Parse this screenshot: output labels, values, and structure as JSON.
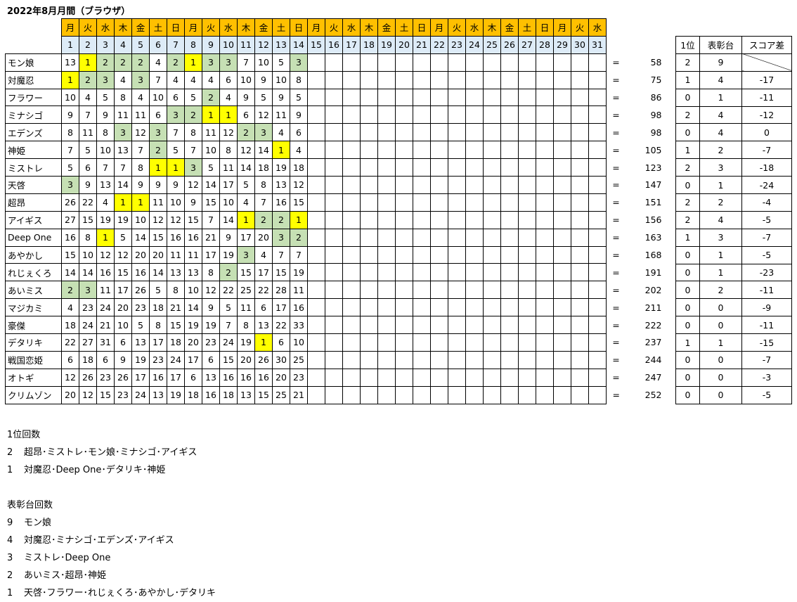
{
  "title": "2022年8月月間（ブラウザ）",
  "weekdays": [
    "月",
    "火",
    "水",
    "木",
    "金",
    "土",
    "日",
    "月",
    "火",
    "水",
    "木",
    "金",
    "土",
    "日",
    "月",
    "火",
    "水",
    "木",
    "金",
    "土",
    "日",
    "月",
    "火",
    "水",
    "木",
    "金",
    "土",
    "日",
    "月",
    "火",
    "水"
  ],
  "dates": [
    "1",
    "2",
    "3",
    "4",
    "5",
    "6",
    "7",
    "8",
    "9",
    "10",
    "11",
    "12",
    "13",
    "14",
    "15",
    "16",
    "17",
    "18",
    "19",
    "20",
    "21",
    "22",
    "23",
    "24",
    "25",
    "26",
    "27",
    "28",
    "29",
    "30",
    "31"
  ],
  "equals_sign": "=",
  "colors": {
    "header": "#FFC000",
    "date_row": "#DDEBF7",
    "first_place": "#FFFF00",
    "podium": "#C6E0B4"
  },
  "stats_headers": [
    "1位",
    "表彰台",
    "スコア差"
  ],
  "rows": [
    {
      "name": "モン娘",
      "ranks": [
        "13",
        "1",
        "2",
        "2",
        "2",
        "4",
        "2",
        "1",
        "3",
        "3",
        "7",
        "10",
        "5",
        "3"
      ],
      "total": "58",
      "first": "2",
      "podium": "9",
      "diff": ""
    },
    {
      "name": "対魔忍",
      "ranks": [
        "1",
        "2",
        "3",
        "4",
        "3",
        "7",
        "4",
        "4",
        "4",
        "6",
        "10",
        "9",
        "10",
        "8"
      ],
      "total": "75",
      "first": "1",
      "podium": "4",
      "diff": "-17"
    },
    {
      "name": "フラワー",
      "ranks": [
        "10",
        "4",
        "5",
        "8",
        "4",
        "10",
        "6",
        "5",
        "2",
        "4",
        "9",
        "5",
        "9",
        "5"
      ],
      "total": "86",
      "first": "0",
      "podium": "1",
      "diff": "-11"
    },
    {
      "name": "ミナシゴ",
      "ranks": [
        "9",
        "7",
        "9",
        "11",
        "11",
        "6",
        "3",
        "2",
        "1",
        "1",
        "6",
        "12",
        "11",
        "9"
      ],
      "total": "98",
      "first": "2",
      "podium": "4",
      "diff": "-12"
    },
    {
      "name": "エデンズ",
      "ranks": [
        "8",
        "11",
        "8",
        "3",
        "12",
        "3",
        "7",
        "8",
        "11",
        "12",
        "2",
        "3",
        "4",
        "6"
      ],
      "total": "98",
      "first": "0",
      "podium": "4",
      "diff": "0"
    },
    {
      "name": "神姫",
      "ranks": [
        "7",
        "5",
        "10",
        "13",
        "7",
        "2",
        "5",
        "7",
        "10",
        "8",
        "12",
        "14",
        "1",
        "4"
      ],
      "total": "105",
      "first": "1",
      "podium": "2",
      "diff": "-7"
    },
    {
      "name": "ミストレ",
      "ranks": [
        "5",
        "6",
        "7",
        "7",
        "8",
        "1",
        "1",
        "3",
        "5",
        "11",
        "14",
        "18",
        "19",
        "18"
      ],
      "total": "123",
      "first": "2",
      "podium": "3",
      "diff": "-18"
    },
    {
      "name": "天啓",
      "ranks": [
        "3",
        "9",
        "13",
        "14",
        "9",
        "9",
        "9",
        "12",
        "14",
        "17",
        "5",
        "8",
        "13",
        "12"
      ],
      "total": "147",
      "first": "0",
      "podium": "1",
      "diff": "-24"
    },
    {
      "name": "超昂",
      "ranks": [
        "26",
        "22",
        "4",
        "1",
        "1",
        "11",
        "10",
        "9",
        "15",
        "10",
        "4",
        "7",
        "16",
        "15"
      ],
      "total": "151",
      "first": "2",
      "podium": "2",
      "diff": "-4"
    },
    {
      "name": "アイギス",
      "ranks": [
        "27",
        "15",
        "19",
        "19",
        "10",
        "12",
        "12",
        "15",
        "7",
        "14",
        "1",
        "2",
        "2",
        "1"
      ],
      "total": "156",
      "first": "2",
      "podium": "4",
      "diff": "-5"
    },
    {
      "name": "Deep One",
      "ranks": [
        "16",
        "8",
        "1",
        "5",
        "14",
        "15",
        "16",
        "16",
        "21",
        "9",
        "17",
        "20",
        "3",
        "2"
      ],
      "total": "163",
      "first": "1",
      "podium": "3",
      "diff": "-7"
    },
    {
      "name": "あやかし",
      "ranks": [
        "15",
        "10",
        "12",
        "12",
        "20",
        "20",
        "11",
        "11",
        "17",
        "19",
        "3",
        "4",
        "7",
        "7"
      ],
      "total": "168",
      "first": "0",
      "podium": "1",
      "diff": "-5"
    },
    {
      "name": "れじぇくろ",
      "ranks": [
        "14",
        "14",
        "16",
        "15",
        "16",
        "14",
        "13",
        "13",
        "8",
        "2",
        "15",
        "17",
        "15",
        "19"
      ],
      "total": "191",
      "first": "0",
      "podium": "1",
      "diff": "-23"
    },
    {
      "name": "あいミス",
      "ranks": [
        "2",
        "3",
        "11",
        "17",
        "26",
        "5",
        "8",
        "10",
        "12",
        "22",
        "25",
        "22",
        "28",
        "11"
      ],
      "total": "202",
      "first": "0",
      "podium": "2",
      "diff": "-11"
    },
    {
      "name": "マジカミ",
      "ranks": [
        "4",
        "23",
        "24",
        "20",
        "23",
        "18",
        "21",
        "14",
        "9",
        "5",
        "11",
        "6",
        "17",
        "16"
      ],
      "total": "211",
      "first": "0",
      "podium": "0",
      "diff": "-9"
    },
    {
      "name": "豪傑",
      "ranks": [
        "18",
        "24",
        "21",
        "10",
        "5",
        "8",
        "15",
        "19",
        "19",
        "7",
        "8",
        "13",
        "22",
        "33"
      ],
      "total": "222",
      "first": "0",
      "podium": "0",
      "diff": "-11"
    },
    {
      "name": "デタリキ",
      "ranks": [
        "22",
        "27",
        "31",
        "6",
        "13",
        "17",
        "18",
        "20",
        "23",
        "24",
        "19",
        "1",
        "6",
        "10"
      ],
      "total": "237",
      "first": "1",
      "podium": "1",
      "diff": "-15"
    },
    {
      "name": "戦国恋姫",
      "ranks": [
        "6",
        "18",
        "6",
        "9",
        "19",
        "23",
        "24",
        "17",
        "6",
        "15",
        "20",
        "26",
        "30",
        "25"
      ],
      "total": "244",
      "first": "0",
      "podium": "0",
      "diff": "-7"
    },
    {
      "name": "オトギ",
      "ranks": [
        "12",
        "26",
        "23",
        "26",
        "17",
        "16",
        "17",
        "6",
        "13",
        "16",
        "16",
        "16",
        "20",
        "23"
      ],
      "total": "247",
      "first": "0",
      "podium": "0",
      "diff": "-3"
    },
    {
      "name": "クリムゾン",
      "ranks": [
        "20",
        "12",
        "15",
        "23",
        "24",
        "13",
        "19",
        "18",
        "16",
        "18",
        "13",
        "15",
        "25",
        "21"
      ],
      "total": "252",
      "first": "0",
      "podium": "0",
      "diff": "-5"
    }
  ],
  "notes": {
    "first_title": "1位回数",
    "first_lines": [
      {
        "count": "2",
        "names": "超昂･ミストレ･モン娘･ミナシゴ･アイギス"
      },
      {
        "count": "1",
        "names": "対魔忍･Deep One･デタリキ･神姫"
      }
    ],
    "podium_title": "表彰台回数",
    "podium_lines": [
      {
        "count": "9",
        "names": "モン娘"
      },
      {
        "count": "4",
        "names": "対魔忍･ミナシゴ･エデンズ･アイギス"
      },
      {
        "count": "3",
        "names": "ミストレ･Deep One"
      },
      {
        "count": "2",
        "names": "あいミス･超昂･神姫"
      },
      {
        "count": "1",
        "names": "天啓･フラワー･れじぇくろ･あやかし･デタリキ"
      }
    ]
  }
}
